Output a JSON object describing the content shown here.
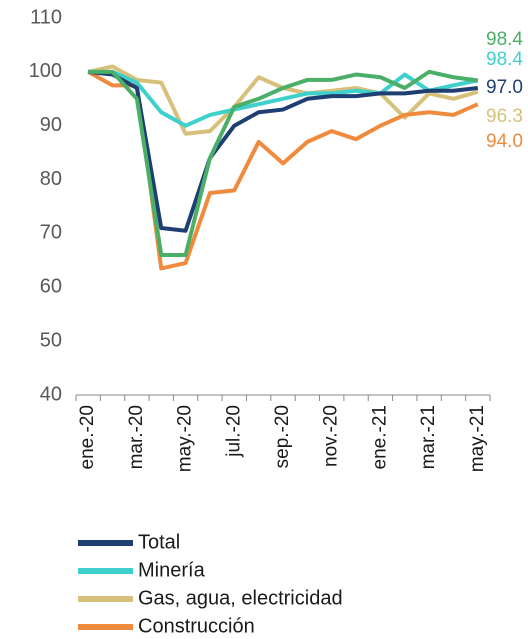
{
  "chart_data": {
    "type": "line",
    "categories": [
      "ene.-20",
      null,
      "mar.-20",
      null,
      "may.-20",
      null,
      "jul.-20",
      null,
      "sep.-20",
      null,
      "nov.-20",
      null,
      "ene.-21",
      null,
      "mar.-21",
      null,
      "may.-21"
    ],
    "ylim": [
      40,
      110
    ],
    "yticks": [
      40,
      50,
      60,
      70,
      80,
      90,
      100,
      110
    ],
    "series": [
      {
        "name": "Total",
        "color": "#1f3f73",
        "values": [
          100,
          99.5,
          97,
          71,
          70.5,
          84,
          90,
          92.5,
          93,
          95,
          95.5,
          95.5,
          96,
          96,
          96.5,
          96.5,
          97.0
        ],
        "value_labels": [
          null,
          null,
          null,
          null,
          null,
          null,
          null,
          null,
          null,
          null,
          null,
          null,
          null,
          null,
          null,
          null,
          "97.0"
        ]
      },
      {
        "name": "Minería",
        "color": "#3dd0cc",
        "values": [
          100,
          100,
          98,
          92.5,
          90,
          92,
          93,
          94,
          95,
          96,
          96,
          96.5,
          96,
          99.5,
          96.5,
          97.5,
          98.4
        ]
      },
      {
        "name": "Gas, agua, electricidad",
        "color": "#d6c07a",
        "values": [
          100,
          101,
          98.5,
          98,
          88.5,
          89,
          93.5,
          99,
          97,
          96,
          96.5,
          97,
          96,
          91.5,
          96,
          95,
          96.3
        ]
      },
      {
        "name": "Construcción",
        "color": "#f08a3c",
        "values": [
          100,
          97.5,
          97.5,
          63.5,
          64.5,
          77.5,
          78,
          87,
          83,
          87,
          89,
          87.5,
          90,
          92,
          92.5,
          92,
          94.0
        ],
        "value_labels": [
          null,
          null,
          null,
          null,
          null,
          null,
          null,
          null,
          null,
          null,
          null,
          null,
          null,
          null,
          null,
          null,
          "94.0"
        ]
      },
      {
        "color": "#4caf68",
        "values": [
          100,
          100,
          95,
          66,
          66,
          84,
          93.5,
          95,
          97,
          98.5,
          98.5,
          99.5,
          99,
          97,
          100,
          99,
          98.4
        ]
      }
    ]
  }
}
